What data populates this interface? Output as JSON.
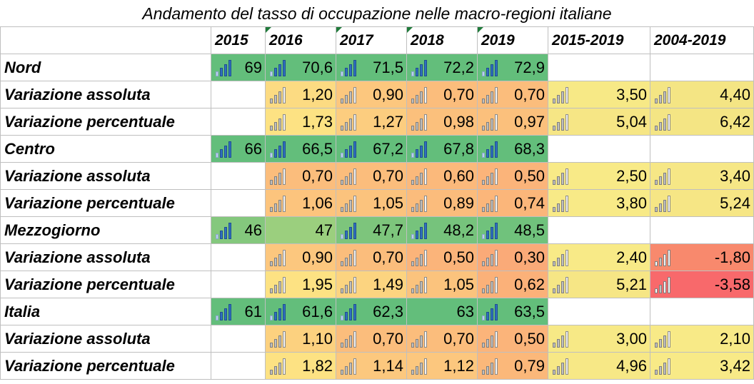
{
  "title": "Andamento del tasso di occupazione nelle macro-regioni italiane",
  "columns": [
    "2015",
    "2016",
    "2017",
    "2018",
    "2019",
    "2015-2019",
    "2004-2019"
  ],
  "rows": [
    {
      "label": "Nord",
      "type": "level",
      "values": [
        "69",
        "70,6",
        "71,5",
        "72,2",
        "72,9",
        "",
        ""
      ],
      "colors": [
        "#63be7b",
        "#63be7b",
        "#63be7b",
        "#63be7b",
        "#63be7b",
        "#ffffff",
        "#ffffff"
      ],
      "icons": [
        "b",
        "b",
        "b",
        "b",
        "b",
        "",
        ""
      ]
    },
    {
      "label": "Variazione assoluta",
      "type": "change",
      "values": [
        "",
        "1,20",
        "0,90",
        "0,70",
        "0,70",
        "3,50",
        "4,40"
      ],
      "colors": [
        "#ffffff",
        "#fcdb82",
        "#fcc77e",
        "#fbbd7c",
        "#fbbd7c",
        "#f7e986",
        "#f4e584"
      ],
      "icons": [
        "",
        "g",
        "g",
        "g",
        "g",
        "g",
        "g"
      ]
    },
    {
      "label": "Variazione percentuale",
      "type": "change",
      "values": [
        "",
        "1,73",
        "1,27",
        "0,98",
        "0,97",
        "5,04",
        "6,42"
      ],
      "colors": [
        "#ffffff",
        "#fde283",
        "#fccd7f",
        "#fbc07c",
        "#fbc07c",
        "#f6e685",
        "#f4e584"
      ],
      "icons": [
        "",
        "g",
        "g",
        "g",
        "g",
        "g",
        "g"
      ]
    },
    {
      "label": "Centro",
      "type": "level",
      "values": [
        "66",
        "66,5",
        "67,2",
        "67,8",
        "68,3",
        "",
        ""
      ],
      "colors": [
        "#63be7b",
        "#63be7b",
        "#63be7b",
        "#63be7b",
        "#63be7b",
        "#ffffff",
        "#ffffff"
      ],
      "icons": [
        "b",
        "b",
        "b",
        "b",
        "b",
        "",
        ""
      ]
    },
    {
      "label": "Variazione assoluta",
      "type": "change",
      "values": [
        "",
        "0,70",
        "0,70",
        "0,60",
        "0,50",
        "2,50",
        "3,40"
      ],
      "colors": [
        "#ffffff",
        "#fbbd7c",
        "#fbbd7c",
        "#fbb97b",
        "#fbb47a",
        "#f8ea87",
        "#f6e786"
      ],
      "icons": [
        "",
        "g",
        "g",
        "g",
        "g",
        "g",
        "g"
      ]
    },
    {
      "label": "Variazione percentuale",
      "type": "change",
      "values": [
        "",
        "1,06",
        "1,05",
        "0,89",
        "0,74",
        "3,80",
        "5,24"
      ],
      "colors": [
        "#ffffff",
        "#fcc47d",
        "#fbc37d",
        "#fbbc7c",
        "#fbb67a",
        "#f8ea87",
        "#f6e685"
      ],
      "icons": [
        "",
        "g",
        "g",
        "g",
        "g",
        "g",
        "g"
      ]
    },
    {
      "label": "Mezzogiorno",
      "type": "level",
      "values": [
        "46",
        "47",
        "47,7",
        "48,2",
        "48,5",
        "",
        ""
      ],
      "colors": [
        "#84c87d",
        "#9bcf7e",
        "#7dc57c",
        "#76c37c",
        "#70c27c",
        "#ffffff",
        "#ffffff"
      ],
      "icons": [
        "b",
        "",
        "b",
        "b",
        "b",
        "",
        ""
      ]
    },
    {
      "label": "Variazione assoluta",
      "type": "change",
      "values": [
        "",
        "0,90",
        "0,70",
        "0,50",
        "0,30",
        "2,40",
        "-1,80"
      ],
      "colors": [
        "#ffffff",
        "#fcc77e",
        "#fbbd7c",
        "#fbb47a",
        "#faaa78",
        "#f8ea87",
        "#f8896d"
      ],
      "icons": [
        "",
        "g",
        "g",
        "g",
        "g",
        "g",
        "r"
      ]
    },
    {
      "label": "Variazione percentuale",
      "type": "change",
      "values": [
        "",
        "1,95",
        "1,49",
        "1,05",
        "0,62",
        "5,21",
        "-3,58"
      ],
      "colors": [
        "#ffffff",
        "#fde283",
        "#fcd480",
        "#fbc37d",
        "#fbb179",
        "#f6e685",
        "#f8696b"
      ],
      "icons": [
        "",
        "g",
        "g",
        "g",
        "g",
        "g",
        "r"
      ]
    },
    {
      "label": "Italia",
      "type": "level",
      "values": [
        "61",
        "61,6",
        "62,3",
        "63",
        "63,5",
        "",
        ""
      ],
      "colors": [
        "#63be7b",
        "#63be7b",
        "#63be7b",
        "#63be7b",
        "#63be7b",
        "#ffffff",
        "#ffffff"
      ],
      "icons": [
        "b",
        "b",
        "b",
        "",
        "b",
        "",
        ""
      ]
    },
    {
      "label": "Variazione assoluta",
      "type": "change",
      "values": [
        "",
        "1,10",
        "0,70",
        "0,70",
        "0,50",
        "3,00",
        "2,10"
      ],
      "colors": [
        "#ffffff",
        "#fcd17f",
        "#fbbd7c",
        "#fbbd7c",
        "#fbb47a",
        "#f7e986",
        "#f8ea87"
      ],
      "icons": [
        "",
        "g",
        "g",
        "g",
        "g",
        "g",
        "g"
      ]
    },
    {
      "label": "Variazione percentuale",
      "type": "change",
      "values": [
        "",
        "1,82",
        "1,14",
        "1,12",
        "0,79",
        "4,96",
        "3,42"
      ],
      "colors": [
        "#ffffff",
        "#fde283",
        "#fcc87e",
        "#fcc77e",
        "#fbb87a",
        "#f7e886",
        "#f8ea87"
      ],
      "icons": [
        "",
        "g",
        "g",
        "g",
        "g",
        "g",
        "g"
      ]
    }
  ]
}
